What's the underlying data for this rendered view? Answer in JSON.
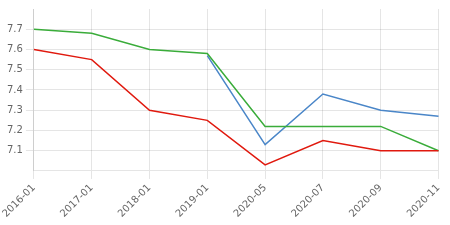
{
  "chart_data": {
    "type": "line",
    "categories": [
      "2016-01",
      "2017-01",
      "2018-01",
      "2019-01",
      "2020-05",
      "2020-07",
      "2020-09",
      "2020-11"
    ],
    "series": [
      {
        "color": "#e0190e",
        "values": [
          7.6,
          7.55,
          7.3,
          7.25,
          7.03,
          7.15,
          7.1,
          7.1
        ]
      },
      {
        "color": "#3aac3a",
        "values": [
          7.7,
          7.68,
          7.6,
          7.58,
          7.22,
          7.22,
          7.22,
          7.1
        ]
      },
      {
        "color": "#4a86c8",
        "values": [
          null,
          null,
          null,
          7.57,
          7.13,
          7.38,
          7.3,
          7.27
        ]
      }
    ],
    "ylim": [
      7.0,
      7.8
    ],
    "yticks": [
      7.1,
      7.2,
      7.3,
      7.4,
      7.5,
      7.6,
      7.7
    ],
    "grid": true
  }
}
